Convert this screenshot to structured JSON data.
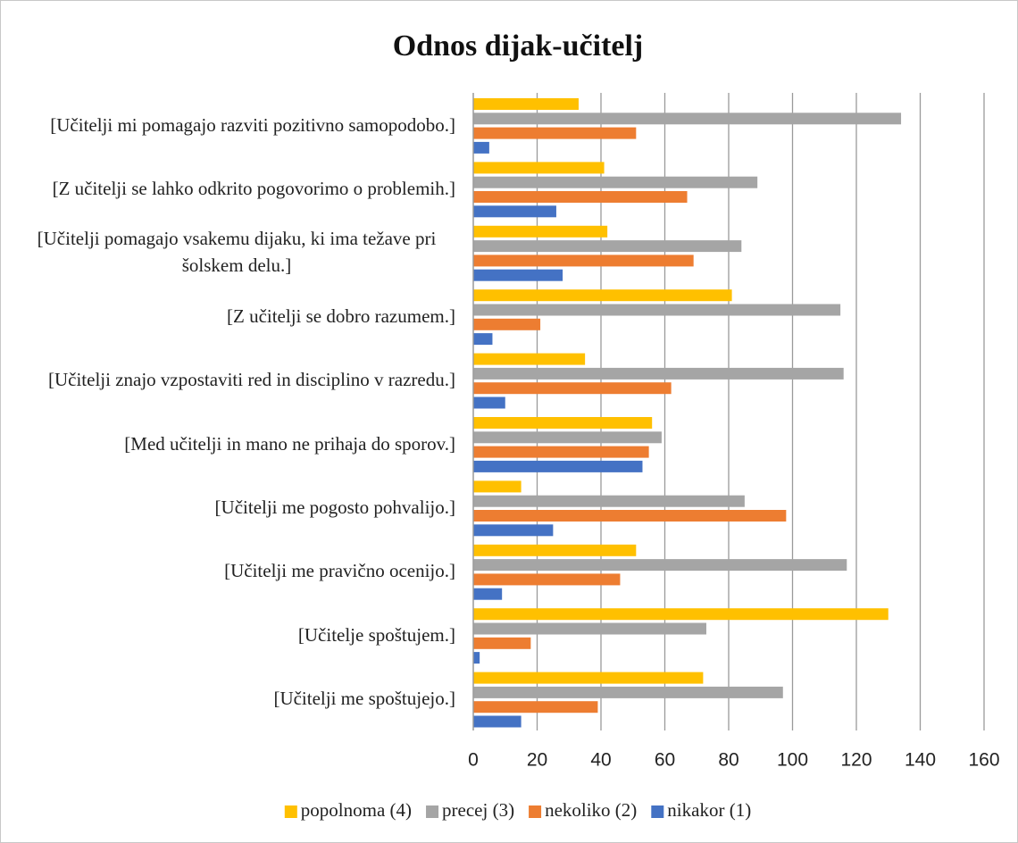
{
  "chart_data": {
    "type": "hbar",
    "title": "Odnos dijak-učitelj",
    "categories": [
      "[Učitelji mi pomagajo razviti pozitivno samopodobo.]",
      "[Z učitelji se lahko odkrito pogovorimo o problemih.]",
      "[Učitelji pomagajo vsakemu dijaku, ki ima težave pri šolskem delu.]",
      "[Z učitelji se dobro razumem.]",
      "[Učitelji znajo vzpostaviti red in disciplino v razredu.]",
      "[Med učitelji in mano ne prihaja do sporov.]",
      "[Učitelji me pogosto pohvalijo.]",
      "[Učitelji me pravično ocenijo.]",
      "[Učitelje spoštujem.]",
      "[Učitelji me spoštujejo.]"
    ],
    "series": [
      {
        "name": "popolnoma (4)",
        "color": "#FFC000",
        "values": [
          33,
          41,
          42,
          81,
          35,
          56,
          15,
          51,
          130,
          72
        ]
      },
      {
        "name": "precej (3)",
        "color": "#A5A5A5",
        "values": [
          134,
          89,
          84,
          115,
          116,
          59,
          85,
          117,
          73,
          97
        ]
      },
      {
        "name": "nekoliko (2)",
        "color": "#ED7D31",
        "values": [
          51,
          67,
          69,
          21,
          62,
          55,
          98,
          46,
          18,
          39
        ]
      },
      {
        "name": "nikakor (1)",
        "color": "#4472C4",
        "values": [
          5,
          26,
          28,
          6,
          10,
          53,
          25,
          9,
          2,
          15
        ]
      }
    ],
    "xlim": [
      0,
      160
    ],
    "xticks": [
      0,
      20,
      40,
      60,
      80,
      100,
      120,
      140,
      160
    ],
    "grid": true,
    "legend": "bottom"
  }
}
